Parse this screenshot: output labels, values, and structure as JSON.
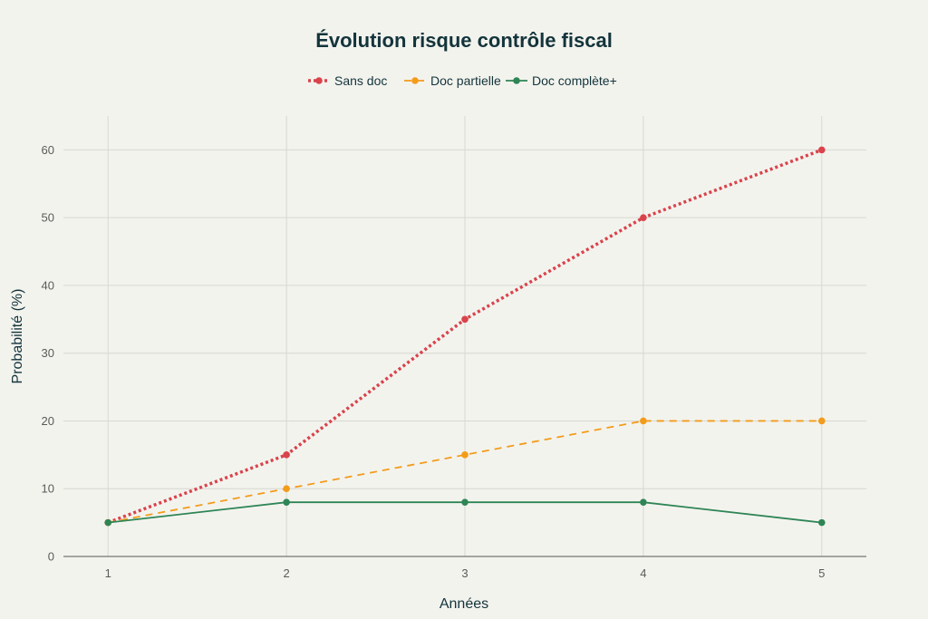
{
  "chart_data": {
    "type": "line",
    "title": "Évolution risque contrôle fiscal",
    "xlabel": "Années",
    "ylabel": "Probabilité (%)",
    "x": [
      1,
      2,
      3,
      4,
      5
    ],
    "xlim": [
      0.75,
      5.25
    ],
    "ylim": [
      0,
      65
    ],
    "x_ticks": [
      1,
      2,
      3,
      4,
      5
    ],
    "y_ticks": [
      0,
      10,
      20,
      30,
      40,
      50,
      60
    ],
    "grid": true,
    "legend_position": "top-center",
    "series": [
      {
        "name": "Sans doc",
        "values": [
          5,
          15,
          35,
          50,
          60
        ],
        "color": "#d9434b",
        "dash": "dot"
      },
      {
        "name": "Doc partielle",
        "values": [
          5,
          10,
          15,
          20,
          20
        ],
        "color": "#f39c1a",
        "dash": "dash"
      },
      {
        "name": "Doc complète+",
        "values": [
          5,
          8,
          8,
          8,
          5
        ],
        "color": "#2e8555",
        "dash": "solid"
      }
    ]
  }
}
